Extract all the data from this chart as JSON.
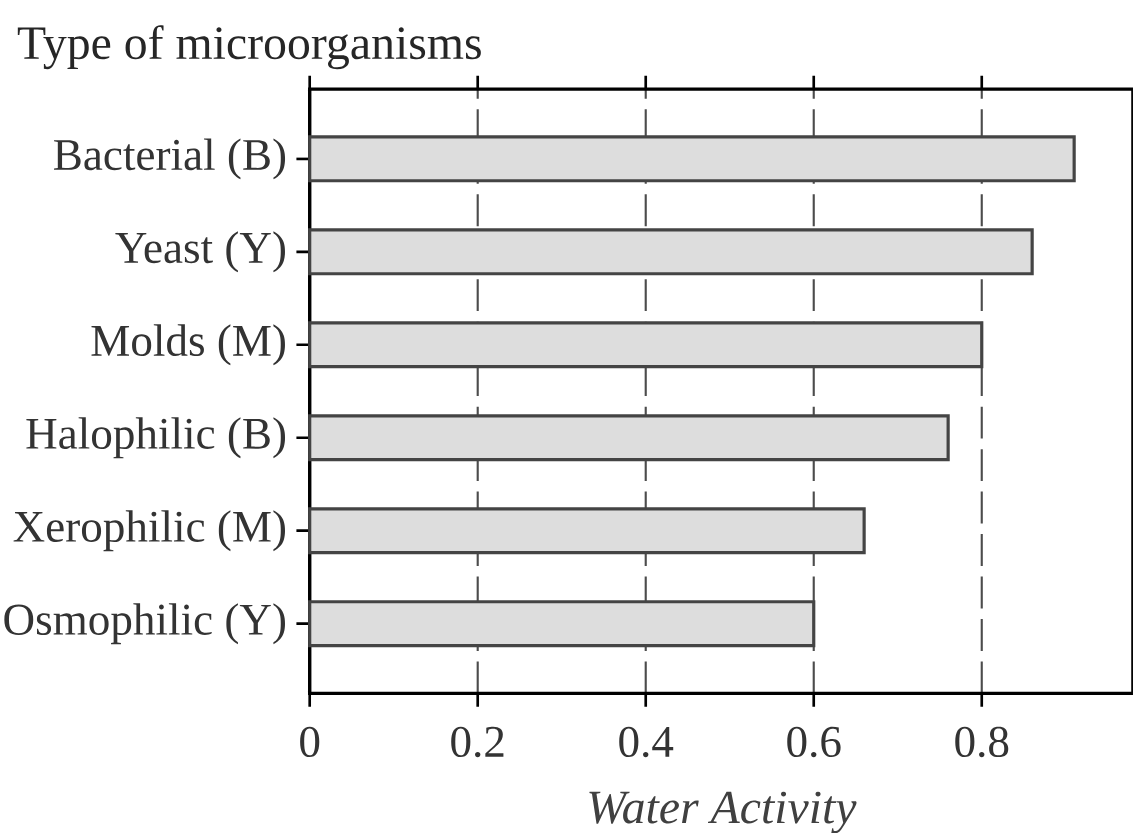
{
  "chart_data": {
    "type": "bar",
    "orientation": "horizontal",
    "ylabel": "Type of microorganisms",
    "xlabel": "Water Activity",
    "categories": [
      "Bacterial (B)",
      "Yeast (Y)",
      "Molds (M)",
      "Halophilic (B)",
      "Xerophilic (M)",
      "Osmophilic (Y)"
    ],
    "values": [
      0.91,
      0.86,
      0.8,
      0.76,
      0.66,
      0.6
    ],
    "color": "#444444",
    "xlim": [
      0,
      0.98
    ],
    "xticks": [
      0,
      0.2,
      0.4,
      0.6,
      0.8
    ],
    "grid": "x"
  }
}
